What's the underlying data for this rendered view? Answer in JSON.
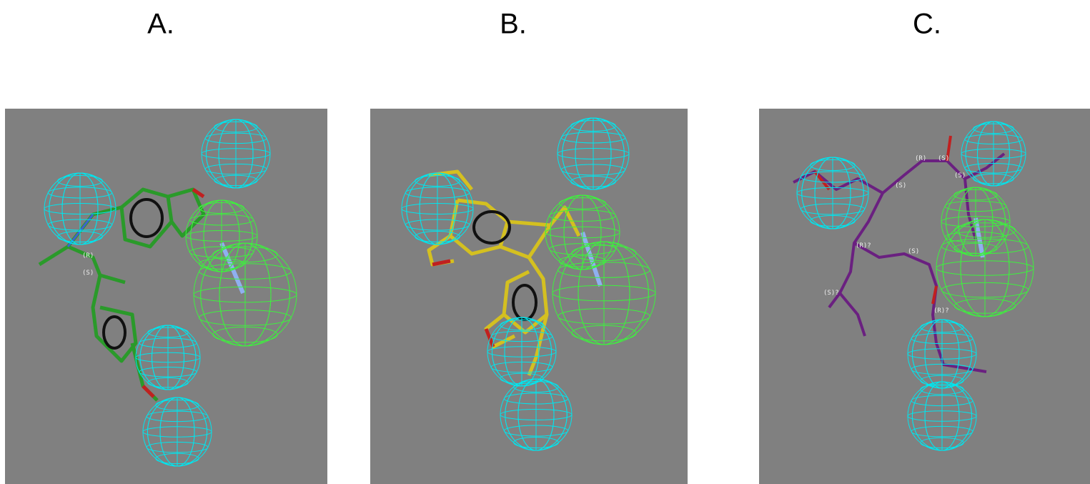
{
  "panels": [
    {
      "label": "A.",
      "stereo_labels": [
        "(R)",
        "(S)"
      ]
    },
    {
      "label": "B.",
      "stereo_labels": []
    },
    {
      "label": "C.",
      "stereo_labels": [
        "(R)",
        "(S)",
        "(S)",
        "(S)",
        "(R)?",
        "(S)",
        "(S)?",
        "(R)?"
      ]
    }
  ]
}
